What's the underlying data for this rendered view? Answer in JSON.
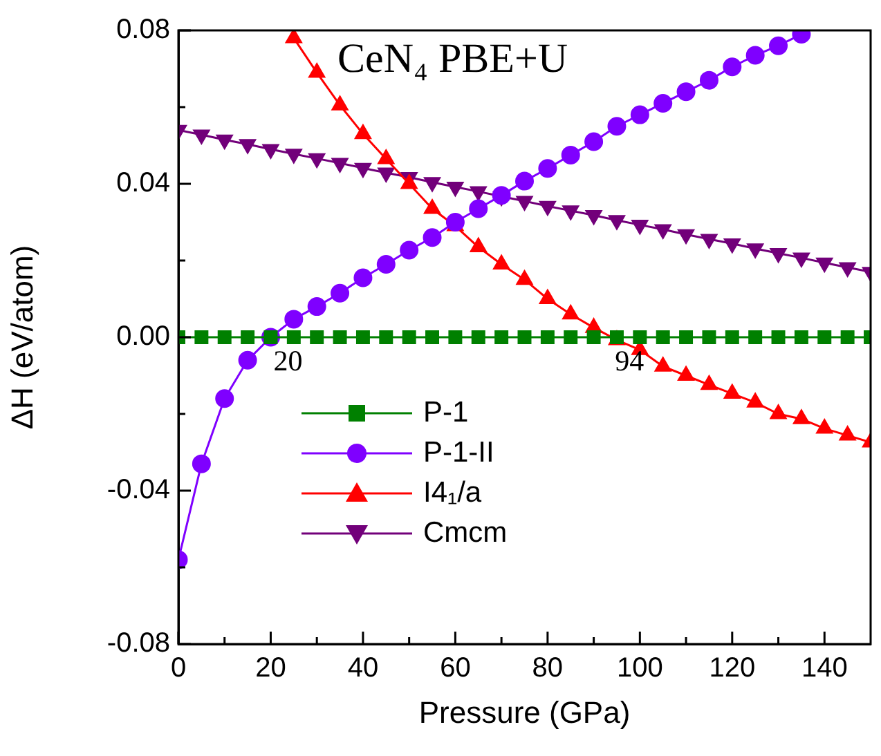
{
  "chart_data": {
    "type": "line",
    "title": "CeN₄ PBE+U",
    "xlabel": "Pressure (GPa)",
    "ylabel": "ΔH (eV/atom)",
    "xlim": [
      0,
      150
    ],
    "ylim": [
      -0.08,
      0.08
    ],
    "xticks": [
      0,
      {
        "value": 10,
        "label": null
      },
      20,
      {
        "value": 30,
        "label": null
      },
      40,
      {
        "value": 50,
        "label": null
      },
      60,
      {
        "value": 70,
        "label": null
      },
      80,
      {
        "value": 90,
        "label": null
      },
      100,
      {
        "value": 110,
        "label": null
      },
      120,
      {
        "value": 130,
        "label": null
      },
      140
    ],
    "yticks": [
      -0.08,
      {
        "value": -0.06,
        "label": null
      },
      -0.04,
      {
        "value": -0.02,
        "label": null
      },
      {
        "value": 0,
        "label": "0.00"
      },
      {
        "value": 0.02,
        "label": null
      },
      0.04,
      {
        "value": 0.06,
        "label": null
      },
      0.08
    ],
    "legend": "bottom left",
    "annotations": [
      {
        "text": "20",
        "x": 20,
        "y": 0
      },
      {
        "text": "94",
        "x": 94,
        "y": 0
      }
    ],
    "series": [
      {
        "name": "P-1",
        "color": "#008000",
        "marker": "square",
        "x": [
          0,
          5,
          10,
          15,
          20,
          25,
          30,
          35,
          40,
          45,
          50,
          55,
          60,
          65,
          70,
          75,
          80,
          85,
          90,
          95,
          100,
          105,
          110,
          115,
          120,
          125,
          130,
          135,
          140,
          145,
          150
        ],
        "values": [
          0,
          0,
          0,
          0,
          0,
          0,
          0,
          0,
          0,
          0,
          0,
          0,
          0,
          0,
          0,
          0,
          0,
          0,
          0,
          0,
          0,
          0,
          0,
          0,
          0,
          0,
          0,
          0,
          0,
          0,
          0
        ]
      },
      {
        "name": "P-1-II",
        "color": "#7f00ff",
        "marker": "circle",
        "x": [
          0,
          5,
          10,
          15,
          20,
          25,
          30,
          35,
          40,
          45,
          50,
          55,
          60,
          65,
          70,
          75,
          80,
          85,
          90,
          95,
          100,
          105,
          110,
          115,
          120,
          125,
          130,
          135
        ],
        "values": [
          -0.058,
          -0.033,
          -0.016,
          -0.006,
          0,
          0.0047,
          0.008,
          0.0115,
          0.0155,
          0.019,
          0.0227,
          0.026,
          0.03,
          0.0335,
          0.037,
          0.0407,
          0.044,
          0.0475,
          0.051,
          0.055,
          0.058,
          0.061,
          0.064,
          0.067,
          0.0705,
          0.0735,
          0.076,
          0.079
        ]
      },
      {
        "name": "I4₁/a",
        "color": "#ff0000",
        "marker": "triangle",
        "x": [
          25,
          30,
          35,
          40,
          45,
          50,
          55,
          60,
          65,
          70,
          75,
          80,
          85,
          90,
          95,
          100,
          105,
          110,
          115,
          120,
          125,
          130,
          135,
          140,
          145,
          150
        ],
        "values": [
          0.078,
          0.069,
          0.0605,
          0.053,
          0.0465,
          0.04,
          0.0335,
          0.029,
          0.0235,
          0.019,
          0.015,
          0.01,
          0.006,
          0.0025,
          -0.0007,
          -0.0033,
          -0.0076,
          -0.01,
          -0.0124,
          -0.0147,
          -0.017,
          -0.02,
          -0.0213,
          -0.0238,
          -0.0256,
          -0.0274
        ]
      },
      {
        "name": "Cmcm",
        "color": "#72007a",
        "marker": "triangle-down",
        "x": [
          0,
          5,
          10,
          15,
          20,
          25,
          30,
          35,
          40,
          45,
          50,
          55,
          60,
          65,
          70,
          75,
          80,
          85,
          90,
          95,
          100,
          105,
          110,
          115,
          120,
          125,
          130,
          135,
          140,
          145,
          150
        ],
        "values": [
          0.054,
          0.0528,
          0.0515,
          0.0503,
          0.049,
          0.0478,
          0.0466,
          0.0454,
          0.0441,
          0.0429,
          0.0417,
          0.0404,
          0.0392,
          0.038,
          0.0367,
          0.0355,
          0.0342,
          0.033,
          0.0318,
          0.0305,
          0.0293,
          0.0281,
          0.0268,
          0.0256,
          0.0244,
          0.0231,
          0.0219,
          0.0207,
          0.0194,
          0.0182,
          0.017
        ]
      }
    ]
  }
}
